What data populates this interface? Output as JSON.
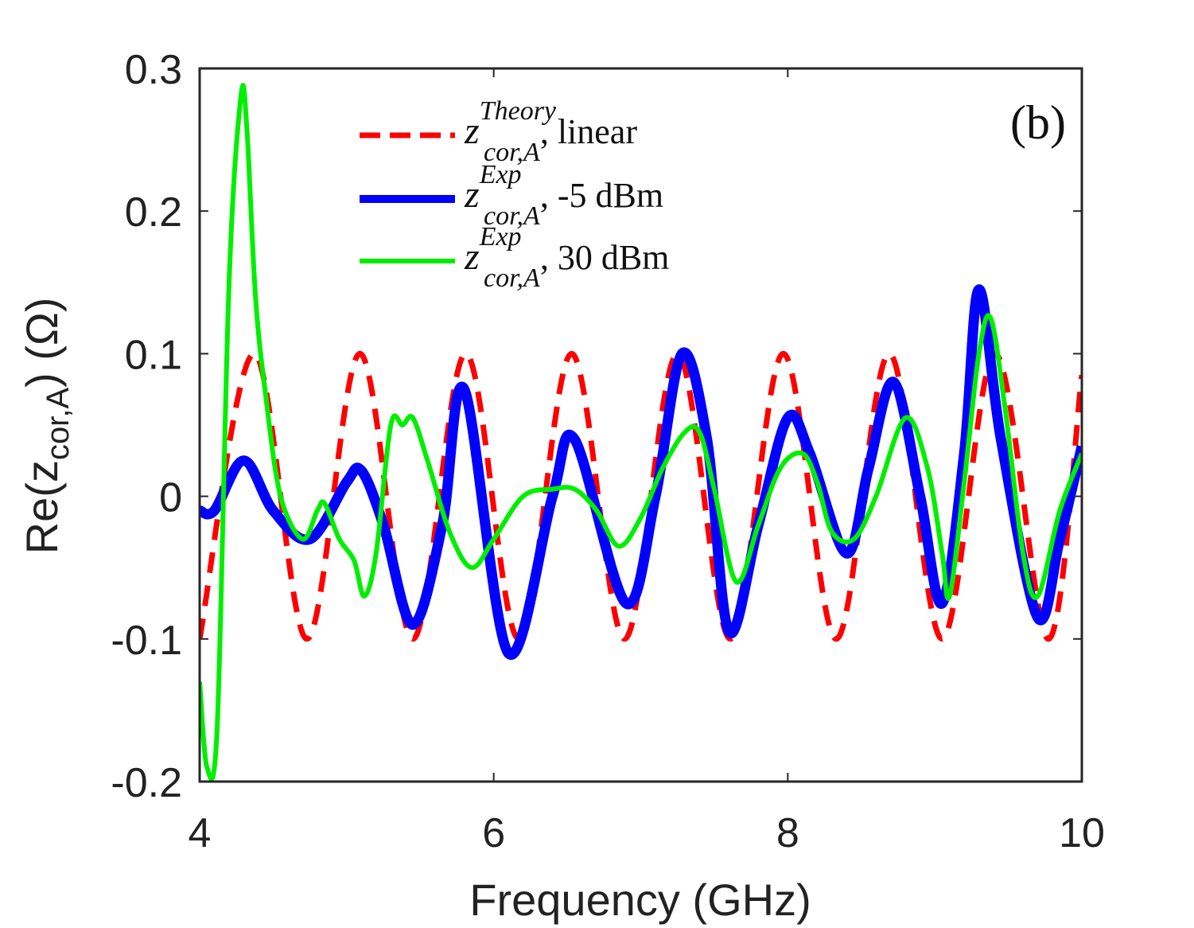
{
  "chart_data": {
    "type": "line",
    "panel_label": "(b)",
    "xlabel": "Frequency (GHz)",
    "ylabel_main": "Re(z",
    "ylabel_sub": "cor,A",
    "ylabel_unit": ") (Ω)",
    "xlim": [
      4,
      10
    ],
    "ylim": [
      -0.2,
      0.3
    ],
    "xticks": [
      4,
      6,
      8,
      10
    ],
    "xtick_labels": [
      "4",
      "6",
      "8",
      "10"
    ],
    "yticks": [
      -0.2,
      -0.1,
      0,
      0.1,
      0.2,
      0.3
    ],
    "ytick_labels": [
      "-0.2",
      "-0.1",
      "0",
      "0.1",
      "0.2",
      "0.3"
    ],
    "legend_position": "top-center",
    "series": [
      {
        "name": "z_cor,A^Theory, linear",
        "legend_var": "z",
        "legend_sup": "Theory",
        "legend_sub": "cor,A",
        "legend_suffix": ", linear",
        "color": "#ff0000",
        "style": "dashed",
        "x": [
          4.0,
          4.37,
          4.73,
          5.09,
          5.45,
          5.81,
          6.17,
          6.53,
          6.89,
          7.25,
          7.61,
          7.97,
          8.33,
          8.69,
          9.05,
          9.41,
          9.77,
          10.0
        ],
        "y": [
          -0.1,
          0.1,
          -0.1,
          0.1,
          -0.1,
          0.1,
          -0.1,
          0.1,
          -0.1,
          0.1,
          -0.1,
          0.1,
          -0.1,
          0.1,
          -0.1,
          0.1,
          -0.1,
          0.085
        ]
      },
      {
        "name": "z_cor,A^Exp, -5 dBm",
        "legend_var": "z",
        "legend_sup": "Exp",
        "legend_sub": "cor,A",
        "legend_suffix": ", -5 dBm",
        "color": "#0000ff",
        "style": "solid-thick",
        "x": [
          4.0,
          4.1,
          4.3,
          4.5,
          4.75,
          5.0,
          5.1,
          5.25,
          5.45,
          5.65,
          5.8,
          6.1,
          6.4,
          6.55,
          6.9,
          7.1,
          7.28,
          7.45,
          7.6,
          7.8,
          8.0,
          8.15,
          8.4,
          8.55,
          8.72,
          8.9,
          9.05,
          9.2,
          9.3,
          9.45,
          9.7,
          9.85,
          10.0
        ],
        "y": [
          -0.01,
          -0.01,
          0.025,
          -0.01,
          -0.03,
          0.01,
          0.018,
          -0.02,
          -0.09,
          -0.02,
          0.075,
          -0.11,
          0.0,
          0.04,
          -0.075,
          0.0,
          0.1,
          0.04,
          -0.095,
          -0.02,
          0.055,
          0.03,
          -0.04,
          0.02,
          0.08,
          0.0,
          -0.075,
          0.03,
          0.145,
          0.04,
          -0.085,
          -0.03,
          0.035
        ]
      },
      {
        "name": "z_cor,A^Exp, 30 dBm",
        "legend_var": "z",
        "legend_sup": "Exp",
        "legend_sub": "cor,A",
        "legend_suffix": ", 30 dBm",
        "color": "#00ee00",
        "style": "solid",
        "x": [
          4.0,
          4.05,
          4.12,
          4.2,
          4.28,
          4.32,
          4.38,
          4.45,
          4.55,
          4.7,
          4.8,
          4.85,
          4.95,
          5.05,
          5.12,
          5.2,
          5.3,
          5.38,
          5.45,
          5.55,
          5.7,
          5.85,
          6.0,
          6.2,
          6.4,
          6.55,
          6.7,
          6.85,
          7.0,
          7.15,
          7.3,
          7.4,
          7.5,
          7.65,
          7.8,
          7.95,
          8.1,
          8.2,
          8.3,
          8.45,
          8.6,
          8.8,
          8.95,
          9.05,
          9.1,
          9.2,
          9.3,
          9.38,
          9.48,
          9.6,
          9.7,
          9.85,
          10.0
        ],
        "y": [
          -0.13,
          -0.19,
          -0.16,
          0.15,
          0.28,
          0.26,
          0.14,
          0.07,
          0.0,
          -0.03,
          -0.01,
          -0.005,
          -0.03,
          -0.045,
          -0.07,
          -0.04,
          0.05,
          0.05,
          0.055,
          0.025,
          -0.025,
          -0.05,
          -0.03,
          0.0,
          0.005,
          0.005,
          -0.01,
          -0.035,
          -0.015,
          0.02,
          0.045,
          0.045,
          0.005,
          -0.06,
          -0.02,
          0.02,
          0.03,
          0.01,
          -0.025,
          -0.03,
          0.0,
          0.055,
          0.02,
          -0.04,
          -0.07,
          0.01,
          0.1,
          0.125,
          0.06,
          -0.04,
          -0.07,
          -0.01,
          0.03
        ]
      }
    ]
  }
}
